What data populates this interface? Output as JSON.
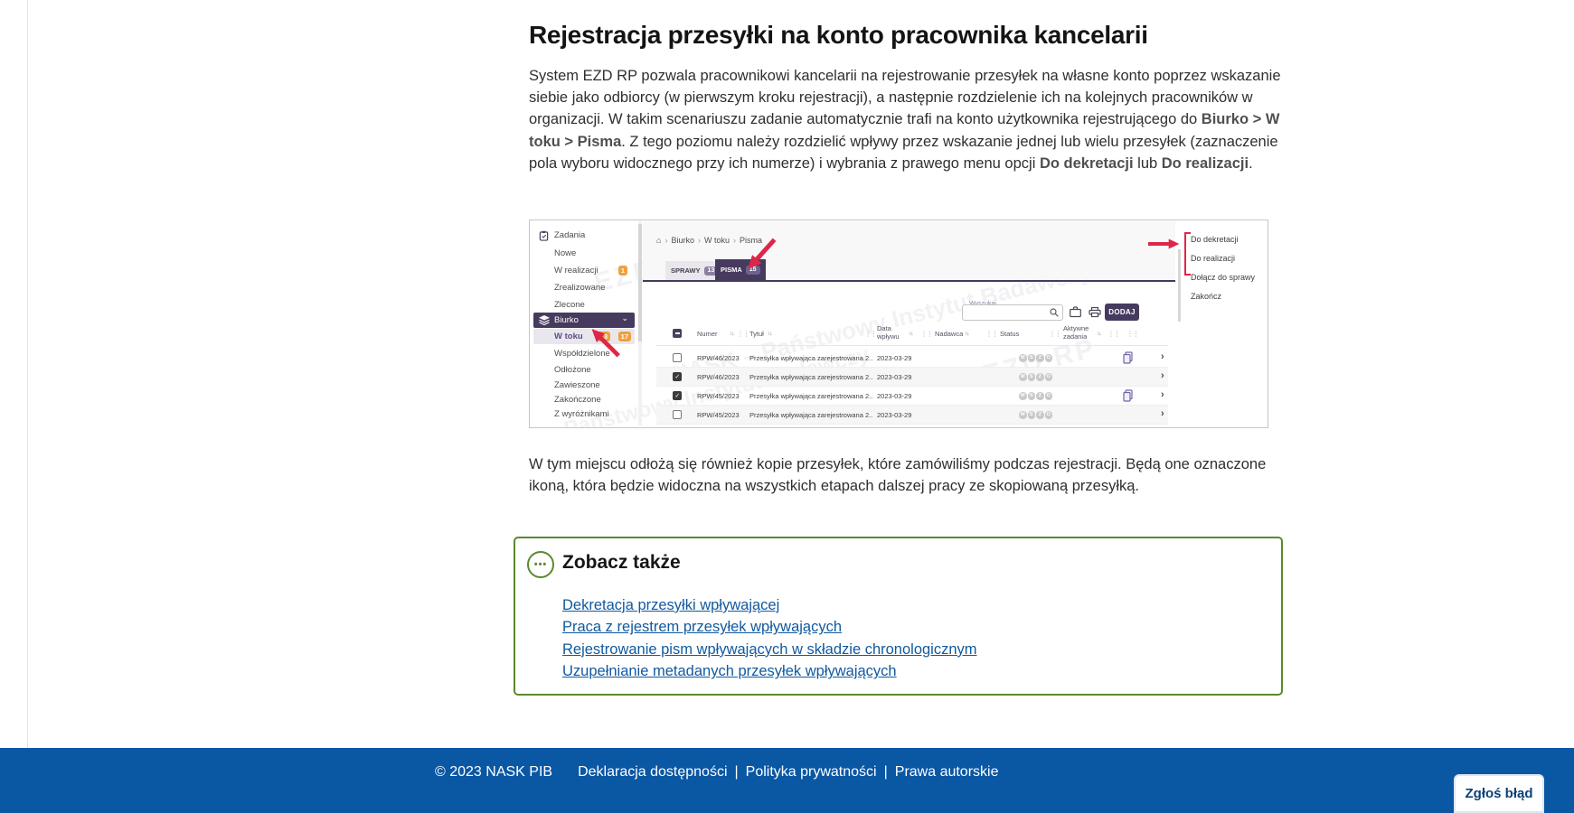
{
  "colors": {
    "purple_dark": "#463a5e",
    "badge_orange": "#f0a03a",
    "footer_blue": "#0a57a4",
    "green_border": "#5a8a2c",
    "arrow_red": "#dd2749",
    "link_blue": "#10599f"
  },
  "icons": {
    "home": "⌂",
    "crumb_sep": "›",
    "chevron_down": "⌄",
    "chevron_right": "›",
    "sort": "↑↓",
    "drag": "⋮⋮",
    "dots": "•••"
  },
  "page": {
    "title": "Rejestracja przesyłki na konto pracownika kancelarii",
    "para1": [
      {
        "t": "System EZD RP pozwala pracownikowi kancelarii na rejestrowanie przesyłek na własne konto poprzez wskazanie siebie jako odbiorcy (w pierwszym kroku rejestracji), a następnie rozdzielenie ich na kolejnych pracowników w organizacji. W takim scenariuszu zadanie automatycznie trafi na konto użytkownika rejestrującego do ",
        "b": false
      },
      {
        "t": "Biurko > W toku > Pisma",
        "b": true
      },
      {
        "t": ". Z tego poziomu należy rozdzielić wpływy przez wskazanie jednej lub wielu przesyłek (zaznaczenie pola wyboru widocznego przy ich numerze) i wybrania z prawego menu opcji ",
        "b": false
      },
      {
        "t": "Do dekretacji",
        "b": true
      },
      {
        "t": " lub ",
        "b": false
      },
      {
        "t": "Do realizacji",
        "b": true
      },
      {
        "t": ".",
        "b": false
      }
    ],
    "para2": "W tym miejscu odłożą się również kopie przesyłek, które zamówiliśmy podczas rejestracji. Będą one oznaczone ikoną, która będzie widoczna na wszystkich etapach dalszej pracy ze skopiowaną przesyłką."
  },
  "screenshot": {
    "sidebar": {
      "items": [
        {
          "label": "Zadania"
        },
        {
          "label": "Nowe"
        },
        {
          "label": "W realizacji",
          "badge": "1"
        },
        {
          "label": "Zrealizowane"
        },
        {
          "label": "Zlecone"
        },
        {
          "label": "Biurko"
        },
        {
          "label": "W toku",
          "badge1": "13",
          "badge2": "17"
        },
        {
          "label": "Współdzielone"
        },
        {
          "label": "Odłożone"
        },
        {
          "label": "Zawieszone"
        },
        {
          "label": "Zakończone"
        },
        {
          "label": "Z wyróżnikami"
        }
      ]
    },
    "breadcrumb": [
      "Biurko",
      "W toku",
      "Pisma"
    ],
    "tabs": [
      {
        "label": "SPRAWY",
        "count": "13"
      },
      {
        "label": "PISMA",
        "count": "15"
      }
    ],
    "toolbar": {
      "search_label": "Wyszukaj",
      "add_label": "DODAJ"
    },
    "table": {
      "headers": {
        "numer": "Numer",
        "tytul": "Tytuł",
        "data_wplywu": "Data wpływu",
        "nadawca": "Nadawca",
        "status": "Status",
        "aktywne": "Aktywne zadania"
      },
      "status_letters": [
        "M",
        "S",
        "Z",
        "O"
      ],
      "rows": [
        {
          "numer": "RPW/46/2023",
          "tytul": "Przesyłka wpływająca zarejestrowana 2...",
          "data": "2023-03-29",
          "checked": false,
          "copy": true
        },
        {
          "numer": "RPW/46/2023",
          "tytul": "Przesyłka wpływająca zarejestrowana 2...",
          "data": "2023-03-29",
          "checked": true,
          "copy": false
        },
        {
          "numer": "RPW/45/2023",
          "tytul": "Przesyłka wpływająca zarejestrowana 2...",
          "data": "2023-03-29",
          "checked": true,
          "copy": true
        },
        {
          "numer": "RPW/45/2023",
          "tytul": "Przesyłka wpływająca zarejestrowana 2...",
          "data": "2023-03-29",
          "checked": false,
          "copy": false
        }
      ]
    },
    "context_menu": [
      "Do dekretacji",
      "Do realizacji",
      "Dołącz do sprawy",
      "Zakończ"
    ],
    "watermarks": {
      "nask": "NASK – Państwowy Instytut Badawczy",
      "ezd": "EZD RP"
    }
  },
  "see_also": {
    "title": "Zobacz także",
    "links": [
      "Dekretacja przesyłki wpływającej",
      "Praca z rejestrem przesyłek wpływających",
      "Rejestrowanie pism wpływających w składzie chronologicznym",
      "Uzupełnianie metadanych przesyłek wpływających"
    ]
  },
  "footer": {
    "copyright": "© 2023 NASK PIB",
    "links": [
      "Deklaracja dostępności",
      "Polityka prywatności",
      "Prawa autorskie"
    ],
    "separator": "|",
    "report_button": "Zgłoś błąd"
  }
}
